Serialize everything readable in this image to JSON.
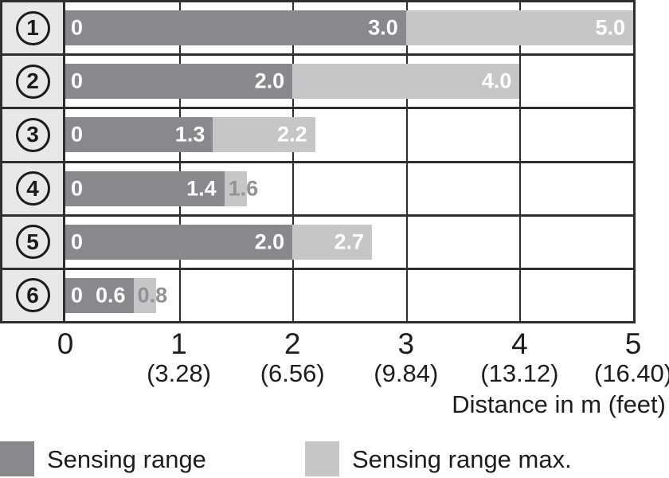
{
  "chart_data": {
    "type": "bar",
    "orientation": "horizontal",
    "xlabel": "Distance in m (feet)",
    "xlim": [
      0,
      5
    ],
    "grid": "on",
    "legend_position": "bottom",
    "x_ticks": [
      {
        "m": "0",
        "feet": ""
      },
      {
        "m": "1",
        "feet": "(3.28)"
      },
      {
        "m": "2",
        "feet": "(6.56)"
      },
      {
        "m": "3",
        "feet": "(9.84)"
      },
      {
        "m": "4",
        "feet": "(13.12)"
      },
      {
        "m": "5",
        "feet": "(16.40)"
      }
    ],
    "series": [
      {
        "name": "Sensing range",
        "color": "#87898c",
        "values": [
          3.0,
          2.0,
          1.3,
          1.4,
          2.0,
          0.6
        ]
      },
      {
        "name": "Sensing range max.",
        "color": "#c5c6c8",
        "values": [
          5.0,
          4.0,
          2.2,
          1.6,
          2.7,
          0.8
        ]
      }
    ],
    "rows": [
      {
        "label": "1",
        "start_label": "0",
        "range": 3.0,
        "range_label": "3.0",
        "max": 5.0,
        "max_label": "5.0",
        "max_label_style": "inside"
      },
      {
        "label": "2",
        "start_label": "0",
        "range": 2.0,
        "range_label": "2.0",
        "max": 4.0,
        "max_label": "4.0",
        "max_label_style": "inside"
      },
      {
        "label": "3",
        "start_label": "0",
        "range": 1.3,
        "range_label": "1.3",
        "max": 2.2,
        "max_label": "2.2",
        "max_label_style": "inside"
      },
      {
        "label": "4",
        "start_label": "0",
        "range": 1.4,
        "range_label": "1.4",
        "max": 1.6,
        "max_label": "1.6",
        "max_label_style": "outside"
      },
      {
        "label": "5",
        "start_label": "0",
        "range": 2.0,
        "range_label": "2.0",
        "max": 2.7,
        "max_label": "2.7",
        "max_label_style": "inside"
      },
      {
        "label": "6",
        "start_label": "0",
        "range": 0.6,
        "range_label": "0.6",
        "max": 0.8,
        "max_label": "0.8",
        "max_label_style": "outside"
      }
    ],
    "legend": [
      {
        "label": "Sensing range",
        "color": "#87898c"
      },
      {
        "label": "Sensing range max.",
        "color": "#c5c6c8"
      }
    ]
  },
  "colors": {
    "border": "#2e2e2e",
    "row_label_bg": "#e8e8e8",
    "bar_dark": "#87898c",
    "bar_light": "#c5c6c8",
    "bar_text": "#ffffff",
    "outside_label_text": "#909295",
    "axis_text": "#1d1d1b"
  }
}
